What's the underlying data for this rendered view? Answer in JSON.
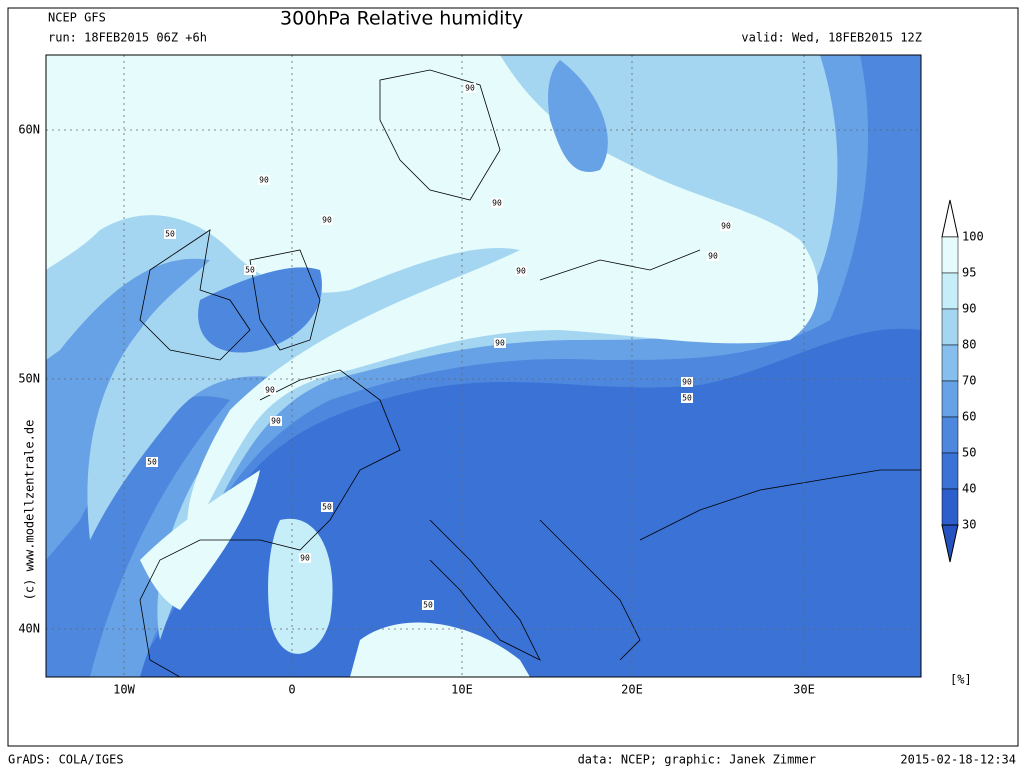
{
  "header": {
    "model": "NCEP GFS",
    "title": "300hPa Relative humidity",
    "run": "run: 18FEB2015 06Z +6h",
    "valid": "valid: Wed, 18FEB2015 12Z"
  },
  "map": {
    "lat_labels": [
      "60N",
      "50N",
      "40N"
    ],
    "lon_labels": [
      "10W",
      "0",
      "10E",
      "20E",
      "30E"
    ],
    "contour_labels": [
      "90",
      "90",
      "50",
      "90",
      "50",
      "90",
      "90",
      "90",
      "90",
      "90",
      "90",
      "50",
      "90",
      "90",
      "50",
      "50",
      "90",
      "50"
    ],
    "copyright": "(c) www.modellzentrale.de"
  },
  "colorbar": {
    "levels": [
      100,
      95,
      90,
      80,
      70,
      60,
      50,
      40,
      30
    ],
    "colors": [
      "#ffffff",
      "#e6fcfc",
      "#c6eef8",
      "#a4d6f2",
      "#86beee",
      "#68a2e6",
      "#4e88de",
      "#3a72d6",
      "#2c5ecc",
      "#2452c0"
    ],
    "unit": "[%]"
  },
  "footer": {
    "software": "GrADS: COLA/IGES",
    "credit": "data: NCEP; graphic: Janek Zimmer",
    "timestamp": "2015-02-18-12:34"
  }
}
